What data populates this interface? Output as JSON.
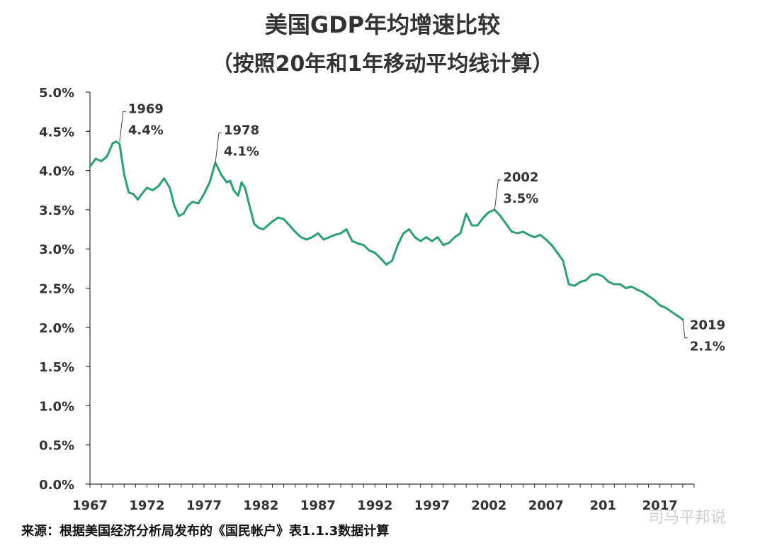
{
  "chart_data": {
    "type": "line",
    "title": "美国GDP年均增速比较",
    "subtitle": "（按照20年和1年移动平均线计算）",
    "xlabel": "",
    "ylabel": "",
    "xlim": [
      1967,
      2020
    ],
    "ylim": [
      0.0,
      5.0
    ],
    "y_ticks": [
      "0.0%",
      "0.5%",
      "1.0%",
      "1.5%",
      "2.0%",
      "2.5%",
      "3.0%",
      "3.5%",
      "4.0%",
      "4.5%",
      "5.0%"
    ],
    "y_tick_values": [
      0.0,
      0.5,
      1.0,
      1.5,
      2.0,
      2.5,
      3.0,
      3.5,
      4.0,
      4.5,
      5.0
    ],
    "x_ticks": [
      "1967",
      "1972",
      "1977",
      "1982",
      "1987",
      "1992",
      "1997",
      "2002",
      "2007",
      "201",
      "2017"
    ],
    "x_tick_values": [
      1967,
      1972,
      1977,
      1982,
      1987,
      1992,
      1997,
      2002,
      2007,
      2012,
      2017
    ],
    "grid": false,
    "series_color": "#2e9e76",
    "series": [
      {
        "x": [
          1967.0,
          1967.5,
          1968.0,
          1968.5,
          1969.0,
          1969.3,
          1969.6,
          1970.0,
          1970.4,
          1970.8,
          1971.2,
          1971.6,
          1972.0,
          1972.5,
          1973.0,
          1973.5,
          1974.0,
          1974.4,
          1974.8,
          1975.2,
          1975.6,
          1976.0,
          1976.5,
          1977.0,
          1977.5,
          1978.0,
          1978.5,
          1979.0,
          1979.3,
          1979.6,
          1980.0,
          1980.3,
          1980.6,
          1981.0,
          1981.4,
          1981.8,
          1982.2,
          1982.6,
          1983.0,
          1983.5,
          1984.0,
          1984.5,
          1985.0,
          1985.5,
          1986.0,
          1986.5,
          1987.0,
          1987.5,
          1988.0,
          1988.5,
          1989.0,
          1989.5,
          1990.0,
          1990.5,
          1991.0,
          1991.5,
          1992.0,
          1992.5,
          1993.0,
          1993.5,
          1994.0,
          1994.5,
          1995.0,
          1995.5,
          1996.0,
          1996.5,
          1997.0,
          1997.5,
          1998.0,
          1998.5,
          1999.0,
          1999.5,
          2000.0,
          2000.5,
          2001.0,
          2001.5,
          2002.0,
          2002.5,
          2003.0,
          2003.5,
          2004.0,
          2004.5,
          2005.0,
          2005.5,
          2006.0,
          2006.5,
          2007.0,
          2007.5,
          2008.0,
          2008.5,
          2009.0,
          2009.5,
          2010.0,
          2010.5,
          2011.0,
          2011.5,
          2012.0,
          2012.5,
          2013.0,
          2013.5,
          2014.0,
          2014.5,
          2015.0,
          2015.5,
          2016.0,
          2016.5,
          2017.0,
          2017.5,
          2018.0,
          2018.5,
          2019.0
        ],
        "values": [
          4.05,
          4.15,
          4.12,
          4.18,
          4.35,
          4.37,
          4.34,
          3.95,
          3.72,
          3.7,
          3.63,
          3.71,
          3.78,
          3.75,
          3.8,
          3.9,
          3.78,
          3.55,
          3.42,
          3.45,
          3.55,
          3.6,
          3.58,
          3.7,
          3.85,
          4.1,
          3.95,
          3.85,
          3.87,
          3.75,
          3.68,
          3.85,
          3.78,
          3.55,
          3.32,
          3.27,
          3.25,
          3.3,
          3.35,
          3.4,
          3.38,
          3.3,
          3.22,
          3.15,
          3.12,
          3.15,
          3.2,
          3.12,
          3.15,
          3.18,
          3.2,
          3.25,
          3.1,
          3.07,
          3.05,
          2.98,
          2.95,
          2.88,
          2.8,
          2.85,
          3.05,
          3.2,
          3.25,
          3.15,
          3.1,
          3.15,
          3.1,
          3.15,
          3.05,
          3.08,
          3.15,
          3.2,
          3.45,
          3.3,
          3.3,
          3.4,
          3.47,
          3.5,
          3.42,
          3.32,
          3.22,
          3.2,
          3.22,
          3.18,
          3.15,
          3.18,
          3.12,
          3.05,
          2.95,
          2.85,
          2.55,
          2.53,
          2.58,
          2.6,
          2.67,
          2.68,
          2.65,
          2.58,
          2.55,
          2.55,
          2.5,
          2.52,
          2.48,
          2.45,
          2.4,
          2.35,
          2.28,
          2.25,
          2.2,
          2.15,
          2.1
        ]
      }
    ],
    "annotations": [
      {
        "year_label": "1969",
        "value_label": "4.4%",
        "x": 1969.6,
        "y": 4.37
      },
      {
        "year_label": "1978",
        "value_label": "4.1%",
        "x": 1978.0,
        "y": 4.1
      },
      {
        "year_label": "2002",
        "value_label": "3.5%",
        "x": 2002.5,
        "y": 3.5
      },
      {
        "year_label": "2019",
        "value_label": "2.1%",
        "x": 2019.0,
        "y": 2.1
      }
    ]
  },
  "source_note": "来源：根据美国经济分析局发布的《国民帐户》表1.1.3数据计算",
  "watermark": "司马平邦说"
}
